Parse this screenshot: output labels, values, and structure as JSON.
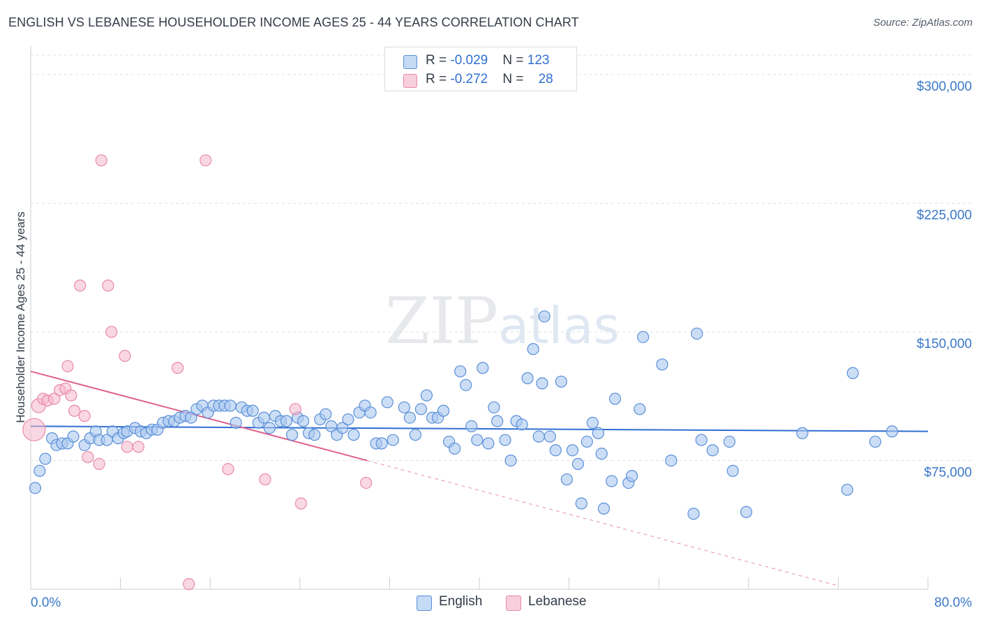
{
  "title": "ENGLISH VS LEBANESE HOUSEHOLDER INCOME AGES 25 - 44 YEARS CORRELATION CHART",
  "source": "Source: ZipAtlas.com",
  "watermark": "ZIPatlas",
  "legend": {
    "english": {
      "r_label": "R = ",
      "r_value": "-0.029",
      "n_label": "N = ",
      "n_value": "123"
    },
    "lebanese": {
      "r_label": "R = ",
      "r_value": "-0.272",
      "n_label": "N = ",
      "n_value": "28"
    }
  },
  "bottom_legend": {
    "english": "English",
    "lebanese": "Lebanese"
  },
  "colors": {
    "english_fill": "#aac8f0",
    "english_stroke": "#5a8fd8",
    "english_line": "#2f6fd0",
    "lebanese_fill": "#f5b8cc",
    "lebanese_stroke": "#e889a8",
    "lebanese_line": "#e0608c",
    "tick_text": "#3a78c8",
    "grid": "#dde1e6"
  },
  "chart_data": {
    "type": "scatter",
    "title": "ENGLISH VS LEBANESE HOUSEHOLDER INCOME AGES 25 - 44 YEARS CORRELATION CHART",
    "xlabel": "",
    "ylabel": "Householder Income Ages 25 - 44 years",
    "xlim": [
      0,
      80
    ],
    "ylim": [
      0,
      315000
    ],
    "x_tick_labels": [
      "0.0%",
      "80.0%"
    ],
    "y_ticks": [
      75000,
      150000,
      225000,
      300000
    ],
    "y_tick_labels": [
      "$75,000",
      "$150,000",
      "$225,000",
      "$300,000"
    ],
    "grid": true,
    "legend_position": "top-center",
    "series": [
      {
        "name": "English",
        "r": -0.029,
        "n": 123,
        "trend": {
          "x": [
            0,
            80
          ],
          "y": [
            95000,
            92000
          ]
        },
        "points": [
          [
            0.4,
            59000
          ],
          [
            0.8,
            69000
          ],
          [
            1.3,
            76000
          ],
          [
            1.9,
            88000
          ],
          [
            2.3,
            84000
          ],
          [
            2.8,
            85000
          ],
          [
            3.3,
            85000
          ],
          [
            3.8,
            89000
          ],
          [
            4.8,
            84000
          ],
          [
            5.3,
            88000
          ],
          [
            5.8,
            92000
          ],
          [
            6.1,
            87000
          ],
          [
            6.8,
            87000
          ],
          [
            7.3,
            92000
          ],
          [
            7.8,
            88000
          ],
          [
            8.3,
            91000
          ],
          [
            8.6,
            92000
          ],
          [
            9.3,
            94000
          ],
          [
            9.8,
            92000
          ],
          [
            10.3,
            91000
          ],
          [
            10.8,
            93000
          ],
          [
            11.3,
            93000
          ],
          [
            11.8,
            97000
          ],
          [
            12.3,
            98000
          ],
          [
            12.8,
            98000
          ],
          [
            13.3,
            100000
          ],
          [
            13.8,
            101000
          ],
          [
            14.3,
            100000
          ],
          [
            14.8,
            105000
          ],
          [
            15.3,
            107000
          ],
          [
            15.8,
            103000
          ],
          [
            16.3,
            107000
          ],
          [
            16.8,
            107000
          ],
          [
            17.3,
            107000
          ],
          [
            17.8,
            107000
          ],
          [
            18.3,
            97000
          ],
          [
            18.8,
            106000
          ],
          [
            19.3,
            104000
          ],
          [
            19.8,
            104000
          ],
          [
            20.3,
            97000
          ],
          [
            20.8,
            100000
          ],
          [
            21.3,
            94000
          ],
          [
            21.8,
            101000
          ],
          [
            22.3,
            98000
          ],
          [
            22.8,
            98000
          ],
          [
            23.3,
            90000
          ],
          [
            23.8,
            100000
          ],
          [
            24.3,
            98000
          ],
          [
            24.8,
            91000
          ],
          [
            25.3,
            90000
          ],
          [
            25.8,
            99000
          ],
          [
            26.3,
            102000
          ],
          [
            26.8,
            95000
          ],
          [
            27.3,
            90000
          ],
          [
            27.8,
            94000
          ],
          [
            28.3,
            99000
          ],
          [
            28.8,
            90000
          ],
          [
            29.3,
            103000
          ],
          [
            29.8,
            107000
          ],
          [
            30.3,
            103000
          ],
          [
            30.8,
            85000
          ],
          [
            31.3,
            85000
          ],
          [
            31.8,
            109000
          ],
          [
            32.3,
            87000
          ],
          [
            33.3,
            106000
          ],
          [
            33.8,
            100000
          ],
          [
            34.3,
            90000
          ],
          [
            34.8,
            105000
          ],
          [
            35.3,
            113000
          ],
          [
            35.8,
            100000
          ],
          [
            36.3,
            100000
          ],
          [
            36.8,
            104000
          ],
          [
            37.3,
            86000
          ],
          [
            37.8,
            82000
          ],
          [
            38.3,
            127000
          ],
          [
            38.8,
            119000
          ],
          [
            39.3,
            95000
          ],
          [
            39.8,
            87000
          ],
          [
            40.3,
            129000
          ],
          [
            40.8,
            85000
          ],
          [
            41.3,
            106000
          ],
          [
            41.6,
            98000
          ],
          [
            42.3,
            87000
          ],
          [
            42.8,
            75000
          ],
          [
            43.3,
            98000
          ],
          [
            43.8,
            96000
          ],
          [
            44.3,
            123000
          ],
          [
            44.8,
            140000
          ],
          [
            45.3,
            89000
          ],
          [
            45.6,
            120000
          ],
          [
            45.8,
            159000
          ],
          [
            46.3,
            89000
          ],
          [
            46.8,
            81000
          ],
          [
            47.3,
            121000
          ],
          [
            47.8,
            64000
          ],
          [
            48.3,
            81000
          ],
          [
            48.8,
            73000
          ],
          [
            49.1,
            50000
          ],
          [
            49.6,
            86000
          ],
          [
            50.1,
            97000
          ],
          [
            50.6,
            91000
          ],
          [
            50.9,
            79000
          ],
          [
            51.1,
            47000
          ],
          [
            51.8,
            63000
          ],
          [
            52.1,
            111000
          ],
          [
            53.3,
            62000
          ],
          [
            53.6,
            66000
          ],
          [
            54.3,
            105000
          ],
          [
            54.6,
            147000
          ],
          [
            56.3,
            131000
          ],
          [
            57.1,
            75000
          ],
          [
            59.1,
            44000
          ],
          [
            59.4,
            149000
          ],
          [
            59.8,
            87000
          ],
          [
            60.8,
            81000
          ],
          [
            62.3,
            86000
          ],
          [
            62.6,
            69000
          ],
          [
            63.8,
            45000
          ],
          [
            68.8,
            91000
          ],
          [
            72.8,
            58000
          ],
          [
            73.3,
            126000
          ],
          [
            75.3,
            86000
          ],
          [
            76.8,
            92000
          ]
        ]
      },
      {
        "name": "Lebanese",
        "r": -0.272,
        "n": 28,
        "trend": {
          "x": [
            0,
            30
          ],
          "y": [
            127000,
            75000
          ],
          "dashed_to": {
            "x": 72,
            "y": 2000
          }
        },
        "points": [
          [
            0.3,
            93000
          ],
          [
            0.7,
            107000
          ],
          [
            1.1,
            111000
          ],
          [
            1.5,
            110000
          ],
          [
            2.1,
            111000
          ],
          [
            2.6,
            116000
          ],
          [
            3.1,
            117000
          ],
          [
            3.3,
            130000
          ],
          [
            3.6,
            113000
          ],
          [
            3.9,
            104000
          ],
          [
            4.4,
            177000
          ],
          [
            4.8,
            101000
          ],
          [
            5.1,
            77000
          ],
          [
            6.1,
            73000
          ],
          [
            6.3,
            250000
          ],
          [
            6.9,
            177000
          ],
          [
            7.2,
            150000
          ],
          [
            8.4,
            136000
          ],
          [
            8.6,
            83000
          ],
          [
            9.6,
            83000
          ],
          [
            13.1,
            129000
          ],
          [
            14.1,
            3000
          ],
          [
            15.6,
            250000
          ],
          [
            17.6,
            70000
          ],
          [
            20.9,
            64000
          ],
          [
            23.6,
            105000
          ],
          [
            24.1,
            50000
          ],
          [
            29.9,
            62000
          ]
        ]
      }
    ]
  }
}
